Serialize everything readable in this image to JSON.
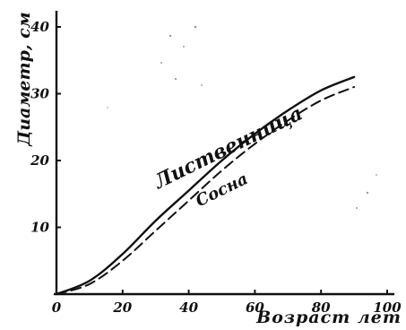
{
  "chart_data": {
    "type": "line",
    "title": "",
    "xlabel": "Возраст лет",
    "ylabel": "Диаметр, см",
    "xlim": [
      0,
      100
    ],
    "ylim": [
      0,
      40
    ],
    "xticks": [
      0,
      20,
      40,
      60,
      80,
      100
    ],
    "xtick_labels": [
      "0",
      "20",
      "40",
      "60",
      "80",
      "100"
    ],
    "yticks": [
      10,
      20,
      30,
      40
    ],
    "ytick_labels": [
      "10",
      "20",
      "30",
      "40"
    ],
    "grid": false,
    "legend": "none",
    "series": [
      {
        "name": "Лиственница",
        "style": "solid",
        "color": "#111111",
        "x": [
          0,
          10,
          20,
          30,
          40,
          50,
          60,
          70,
          80,
          90
        ],
        "y": [
          0,
          2,
          6,
          11,
          15.5,
          20,
          24,
          27.5,
          30.5,
          32.5
        ]
      },
      {
        "name": "Сосна",
        "style": "dashed",
        "color": "#111111",
        "x": [
          0,
          10,
          20,
          30,
          40,
          50,
          60,
          70,
          80,
          90
        ],
        "y": [
          0,
          1.5,
          5,
          9.5,
          14,
          18.5,
          22.5,
          26,
          29,
          31
        ]
      }
    ]
  }
}
